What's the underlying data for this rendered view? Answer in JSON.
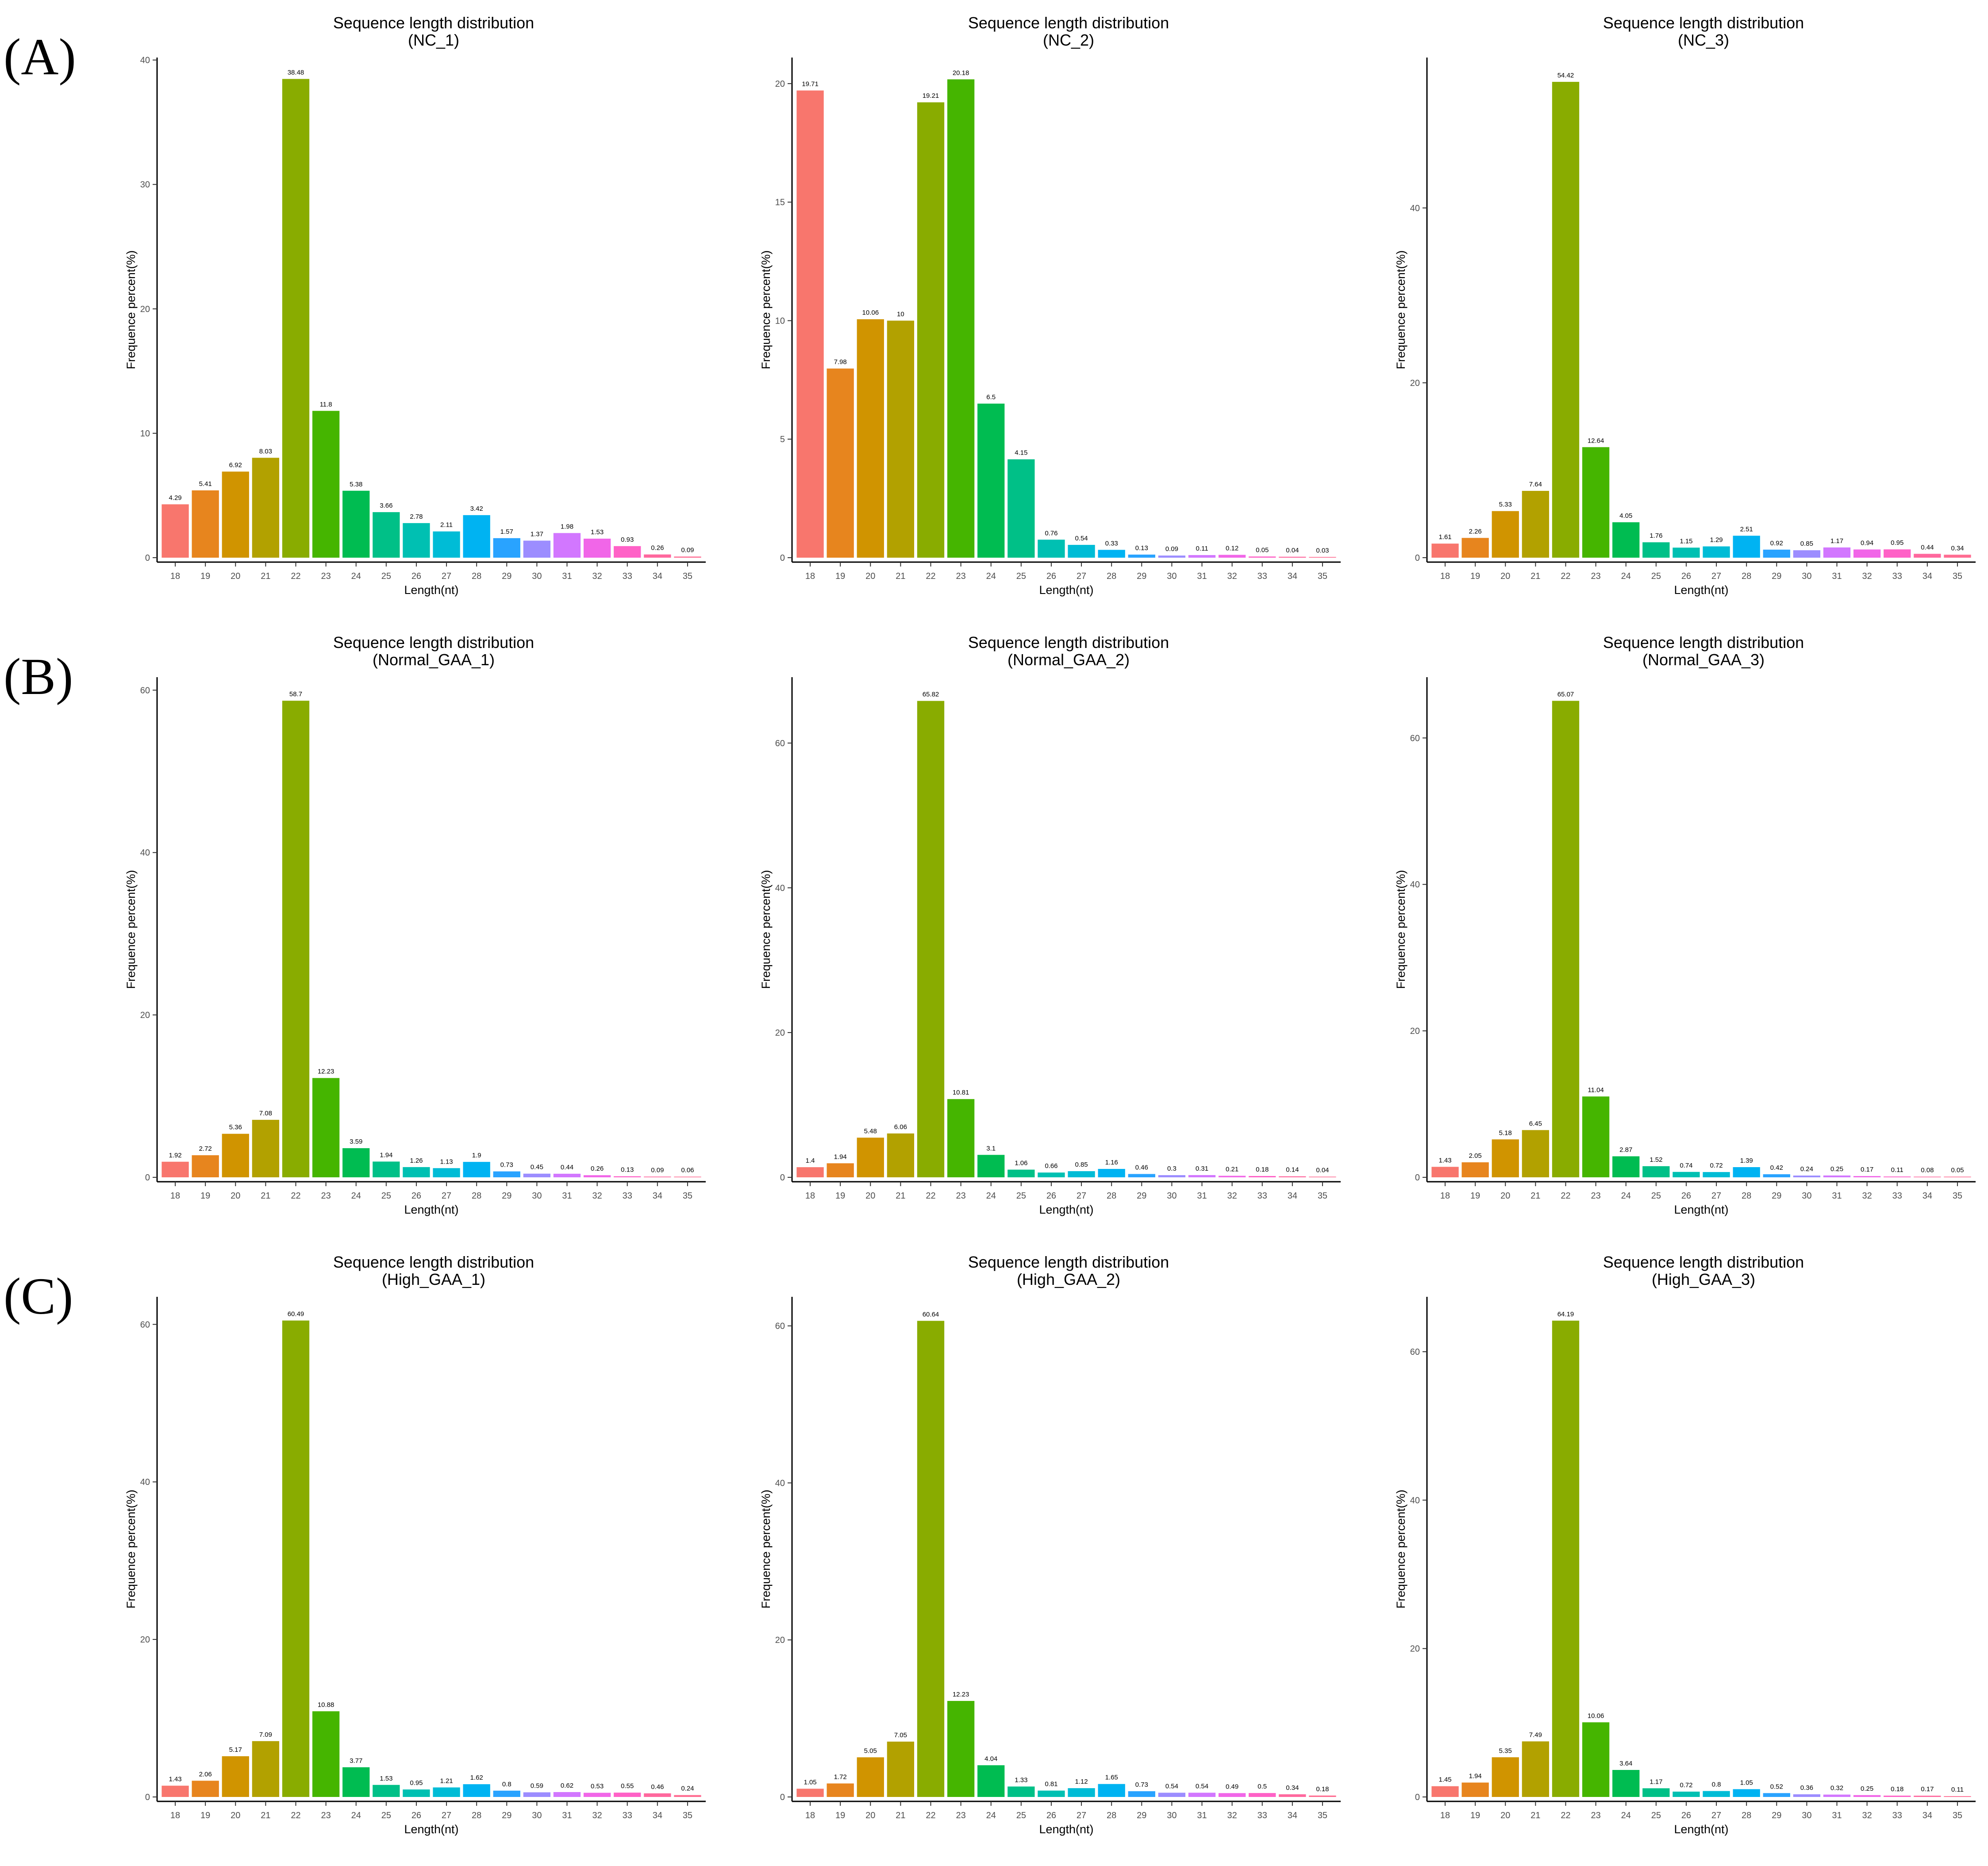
{
  "row_labels": [
    "(A)",
    "(B)",
    "(C)"
  ],
  "colors": [
    "#F8766D",
    "#E7851E",
    "#D09400",
    "#B2A100",
    "#89AC00",
    "#45B500",
    "#00BC51",
    "#00C087",
    "#00C0B2",
    "#00BCD6",
    "#00B3F2",
    "#29A3FF",
    "#9C8DFF",
    "#D277FF",
    "#F166E8",
    "#FF61C7",
    "#FF689E",
    "#FF6C91"
  ],
  "chart_data": [
    {
      "type": "bar",
      "title": "Sequence length distribution",
      "subtitle": "(NC_1)",
      "xlabel": "Length(nt)",
      "ylabel": "Frequence percent(%)",
      "categories": [
        "18",
        "19",
        "20",
        "21",
        "22",
        "23",
        "24",
        "25",
        "26",
        "27",
        "28",
        "29",
        "30",
        "31",
        "32",
        "33",
        "34",
        "35"
      ],
      "values": [
        4.29,
        5.41,
        6.92,
        8.03,
        38.48,
        11.8,
        5.38,
        3.66,
        2.78,
        2.11,
        3.42,
        1.57,
        1.37,
        1.98,
        1.53,
        0.93,
        0.26,
        0.09
      ],
      "value_labels": [
        "4.29",
        "5.41",
        "6.92",
        "8.03",
        "38.48",
        "11.8",
        "5.38",
        "3.66",
        "2.78",
        "2.11",
        "3.42",
        "1.57",
        "1.37",
        "1.98",
        "1.53",
        "0.93",
        "0.26",
        "0.09"
      ],
      "ylim": [
        0,
        40.2
      ],
      "yticks": [
        0,
        10,
        20,
        30,
        40
      ]
    },
    {
      "type": "bar",
      "title": "Sequence length distribution",
      "subtitle": "(NC_2)",
      "xlabel": "Length(nt)",
      "ylabel": "Frequence percent(%)",
      "categories": [
        "18",
        "19",
        "20",
        "21",
        "22",
        "23",
        "24",
        "25",
        "26",
        "27",
        "28",
        "29",
        "30",
        "31",
        "32",
        "33",
        "34",
        "35"
      ],
      "values": [
        19.71,
        7.98,
        10.06,
        10,
        19.21,
        20.18,
        6.5,
        4.15,
        0.76,
        0.54,
        0.33,
        0.13,
        0.09,
        0.11,
        0.12,
        0.05,
        0.04,
        0.03
      ],
      "value_labels": [
        "19.71",
        "7.98",
        "10.06",
        "10",
        "19.21",
        "20.18",
        "6.5",
        "4.15",
        "0.76",
        "0.54",
        "0.33",
        "0.13",
        "0.09",
        "0.11",
        "0.12",
        "0.05",
        "0.04",
        "0.03"
      ],
      "ylim": [
        0,
        21.1
      ],
      "yticks": [
        0,
        5,
        10,
        15,
        20
      ]
    },
    {
      "type": "bar",
      "title": "Sequence length distribution",
      "subtitle": "(NC_3)",
      "xlabel": "Length(nt)",
      "ylabel": "Frequence percent(%)",
      "categories": [
        "18",
        "19",
        "20",
        "21",
        "22",
        "23",
        "24",
        "25",
        "26",
        "27",
        "28",
        "29",
        "30",
        "31",
        "32",
        "33",
        "34",
        "35"
      ],
      "values": [
        1.61,
        2.26,
        5.33,
        7.64,
        54.42,
        12.64,
        4.05,
        1.76,
        1.15,
        1.29,
        2.51,
        0.92,
        0.85,
        1.17,
        0.94,
        0.95,
        0.44,
        0.34
      ],
      "value_labels": [
        "1.61",
        "2.26",
        "5.33",
        "7.64",
        "54.42",
        "12.64",
        "4.05",
        "1.76",
        "1.15",
        "1.29",
        "2.51",
        "0.92",
        "0.85",
        "1.17",
        "0.94",
        "0.95",
        "0.44",
        "0.34"
      ],
      "ylim": [
        0,
        57.2
      ],
      "yticks": [
        0,
        20,
        40
      ]
    },
    {
      "type": "bar",
      "title": "Sequence length distribution",
      "subtitle": "(Normal_GAA_1)",
      "xlabel": "Length(nt)",
      "ylabel": "Frequence percent(%)",
      "categories": [
        "18",
        "19",
        "20",
        "21",
        "22",
        "23",
        "24",
        "25",
        "26",
        "27",
        "28",
        "29",
        "30",
        "31",
        "32",
        "33",
        "34",
        "35"
      ],
      "values": [
        1.92,
        2.72,
        5.36,
        7.08,
        58.7,
        12.23,
        3.59,
        1.94,
        1.26,
        1.13,
        1.9,
        0.73,
        0.45,
        0.44,
        0.26,
        0.13,
        0.09,
        0.06
      ],
      "value_labels": [
        "1.92",
        "2.72",
        "5.36",
        "7.08",
        "58.7",
        "12.23",
        "3.59",
        "1.94",
        "1.26",
        "1.13",
        "1.9",
        "0.73",
        "0.45",
        "0.44",
        "0.26",
        "0.13",
        "0.09",
        "0.06"
      ],
      "ylim": [
        0,
        61.6
      ],
      "yticks": [
        0,
        20,
        40,
        60
      ]
    },
    {
      "type": "bar",
      "title": "Sequence length distribution",
      "subtitle": "(Normal_GAA_2)",
      "xlabel": "Length(nt)",
      "ylabel": "Frequence percent(%)",
      "categories": [
        "18",
        "19",
        "20",
        "21",
        "22",
        "23",
        "24",
        "25",
        "26",
        "27",
        "28",
        "29",
        "30",
        "31",
        "32",
        "33",
        "34",
        "35"
      ],
      "values": [
        1.4,
        1.94,
        5.48,
        6.06,
        65.82,
        10.81,
        3.1,
        1.06,
        0.66,
        0.85,
        1.16,
        0.46,
        0.3,
        0.31,
        0.21,
        0.18,
        0.14,
        0.04
      ],
      "value_labels": [
        "1.4",
        "1.94",
        "5.48",
        "6.06",
        "65.82",
        "10.81",
        "3.1",
        "1.06",
        "0.66",
        "0.85",
        "1.16",
        "0.46",
        "0.3",
        "0.31",
        "0.21",
        "0.18",
        "0.14",
        "0.04"
      ],
      "ylim": [
        0,
        69.1
      ],
      "yticks": [
        0,
        20,
        40,
        60
      ]
    },
    {
      "type": "bar",
      "title": "Sequence length distribution",
      "subtitle": "(Normal_GAA_3)",
      "xlabel": "Length(nt)",
      "ylabel": "Frequence percent(%)",
      "categories": [
        "18",
        "19",
        "20",
        "21",
        "22",
        "23",
        "24",
        "25",
        "26",
        "27",
        "28",
        "29",
        "30",
        "31",
        "32",
        "33",
        "34",
        "35"
      ],
      "values": [
        1.43,
        2.05,
        5.18,
        6.45,
        65.07,
        11.04,
        2.87,
        1.52,
        0.74,
        0.72,
        1.39,
        0.42,
        0.24,
        0.25,
        0.17,
        0.11,
        0.08,
        0.05
      ],
      "value_labels": [
        "1.43",
        "2.05",
        "5.18",
        "6.45",
        "65.07",
        "11.04",
        "2.87",
        "1.52",
        "0.74",
        "0.72",
        "1.39",
        "0.42",
        "0.24",
        "0.25",
        "0.17",
        "0.11",
        "0.08",
        "0.05"
      ],
      "ylim": [
        0,
        68.3
      ],
      "yticks": [
        0,
        20,
        40,
        60
      ]
    },
    {
      "type": "bar",
      "title": "Sequence length distribution",
      "subtitle": "(High_GAA_1)",
      "xlabel": "Length(nt)",
      "ylabel": "Frequence percent(%)",
      "categories": [
        "18",
        "19",
        "20",
        "21",
        "22",
        "23",
        "24",
        "25",
        "26",
        "27",
        "28",
        "29",
        "30",
        "31",
        "32",
        "33",
        "34",
        "35"
      ],
      "values": [
        1.43,
        2.06,
        5.17,
        7.09,
        60.49,
        10.88,
        3.77,
        1.53,
        0.95,
        1.21,
        1.62,
        0.8,
        0.59,
        0.62,
        0.53,
        0.55,
        0.46,
        0.24
      ],
      "value_labels": [
        "1.43",
        "2.06",
        "5.17",
        "7.09",
        "60.49",
        "10.88",
        "3.77",
        "1.53",
        "0.95",
        "1.21",
        "1.62",
        "0.8",
        "0.59",
        "0.62",
        "0.53",
        "0.55",
        "0.46",
        "0.24"
      ],
      "ylim": [
        0,
        63.5
      ],
      "yticks": [
        0,
        20,
        40,
        60
      ]
    },
    {
      "type": "bar",
      "title": "Sequence length distribution",
      "subtitle": "(High_GAA_2)",
      "xlabel": "Length(nt)",
      "ylabel": "Frequence percent(%)",
      "categories": [
        "18",
        "19",
        "20",
        "21",
        "22",
        "23",
        "24",
        "25",
        "26",
        "27",
        "28",
        "29",
        "30",
        "31",
        "32",
        "33",
        "34",
        "35"
      ],
      "values": [
        1.05,
        1.72,
        5.05,
        7.05,
        60.64,
        12.23,
        4.04,
        1.33,
        0.81,
        1.12,
        1.65,
        0.73,
        0.54,
        0.54,
        0.49,
        0.5,
        0.34,
        0.18
      ],
      "value_labels": [
        "1.05",
        "1.72",
        "5.05",
        "7.05",
        "60.64",
        "12.23",
        "4.04",
        "1.33",
        "0.81",
        "1.12",
        "1.65",
        "0.73",
        "0.54",
        "0.54",
        "0.49",
        "0.5",
        "0.34",
        "0.18"
      ],
      "ylim": [
        0,
        63.7
      ],
      "yticks": [
        0,
        20,
        40,
        60
      ]
    },
    {
      "type": "bar",
      "title": "Sequence length distribution",
      "subtitle": "(High_GAA_3)",
      "xlabel": "Length(nt)",
      "ylabel": "Frequence percent(%)",
      "categories": [
        "18",
        "19",
        "20",
        "21",
        "22",
        "23",
        "24",
        "25",
        "26",
        "27",
        "28",
        "29",
        "30",
        "31",
        "32",
        "33",
        "34",
        "35"
      ],
      "values": [
        1.45,
        1.94,
        5.35,
        7.49,
        64.19,
        10.06,
        3.64,
        1.17,
        0.72,
        0.8,
        1.05,
        0.52,
        0.36,
        0.32,
        0.25,
        0.18,
        0.17,
        0.11
      ],
      "value_labels": [
        "1.45",
        "1.94",
        "5.35",
        "7.49",
        "64.19",
        "10.06",
        "3.64",
        "1.17",
        "0.72",
        "0.8",
        "1.05",
        "0.52",
        "0.36",
        "0.32",
        "0.25",
        "0.18",
        "0.17",
        "0.11"
      ],
      "ylim": [
        0,
        67.4
      ],
      "yticks": [
        0,
        20,
        40,
        60
      ]
    }
  ]
}
